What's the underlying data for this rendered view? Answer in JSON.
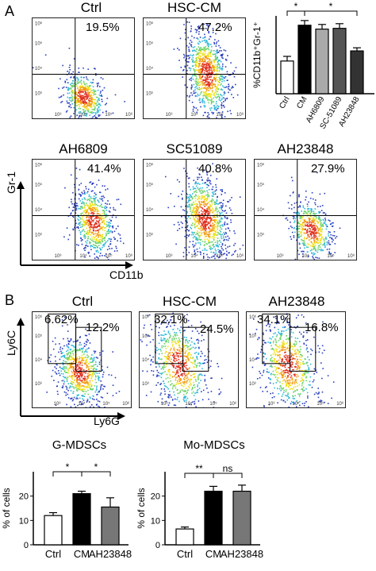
{
  "panels": {
    "A": {
      "letter": "A",
      "plots": [
        {
          "title": "Ctrl",
          "pct": "19.5%",
          "center": [
            0.5,
            0.78
          ],
          "spread": [
            0.1,
            0.12
          ],
          "density": "low"
        },
        {
          "title": "HSC-CM",
          "pct": "47.2%",
          "center": [
            0.62,
            0.55
          ],
          "spread": [
            0.1,
            0.22
          ],
          "density": "high"
        },
        {
          "title": "AH6809",
          "pct": "41.4%",
          "center": [
            0.6,
            0.62
          ],
          "spread": [
            0.1,
            0.18
          ],
          "density": "mid"
        },
        {
          "title": "SC51089",
          "pct": "40.8%",
          "center": [
            0.6,
            0.58
          ],
          "spread": [
            0.11,
            0.22
          ],
          "density": "high"
        },
        {
          "title": "AH23848",
          "pct": "27.9%",
          "center": [
            0.55,
            0.7
          ],
          "spread": [
            0.1,
            0.15
          ],
          "density": "low"
        }
      ],
      "x_axis_label": "CD11b",
      "y_axis_label": "Gr-1",
      "ticks": [
        "10³",
        "10⁴",
        "10⁵",
        "10⁶"
      ],
      "bar_chart": {
        "ylabel": "%CD11b⁺Gr-1⁺",
        "categories": [
          "Ctrl",
          "CM",
          "AH6809",
          "SC-51089",
          "AH23848"
        ],
        "significance": [
          "*",
          "*"
        ]
      }
    },
    "B": {
      "letter": "B",
      "plots": [
        {
          "title": "Ctrl",
          "pct_left": "6.62%",
          "pct_right": "12.2%",
          "center": [
            0.48,
            0.62
          ],
          "spread": [
            0.12,
            0.18
          ]
        },
        {
          "title": "HSC-CM",
          "pct_left": "32.1%",
          "pct_right": "24.5%",
          "center": [
            0.4,
            0.55
          ],
          "spread": [
            0.14,
            0.24
          ]
        },
        {
          "title": "AH23848",
          "pct_left": "34.1%",
          "pct_right": "16.8%",
          "center": [
            0.42,
            0.55
          ],
          "spread": [
            0.14,
            0.24
          ]
        }
      ],
      "x_axis_label": "Ly6G",
      "y_axis_label": "Ly6C",
      "ticks": [
        "10³",
        "10⁴",
        "10⁵",
        "10⁶"
      ]
    }
  },
  "chart_data": [
    {
      "type": "bar",
      "title": "",
      "ylabel": "%CD11b⁺Gr-1⁺",
      "categories": [
        "Ctrl",
        "CM",
        "AH6809",
        "SC-51089",
        "AH23848"
      ],
      "values": [
        21,
        44,
        41.5,
        42,
        27.5
      ],
      "errors": [
        3,
        3,
        3,
        3,
        2
      ],
      "colors": [
        "#ffffff",
        "#000000",
        "#aaaaaa",
        "#555555",
        "#333333"
      ],
      "ylim": [
        0,
        50
      ],
      "significance": [
        {
          "from": "Ctrl",
          "to": "CM",
          "label": "*"
        },
        {
          "from": "CM",
          "to": "AH23848",
          "label": "*"
        }
      ]
    },
    {
      "type": "bar",
      "title": "G-MDSCs",
      "ylabel": "% of cells",
      "categories": [
        "Ctrl",
        "CM",
        "AH23848"
      ],
      "values": [
        12,
        21,
        15.5
      ],
      "errors": [
        1.2,
        1.0,
        3.8
      ],
      "colors": [
        "#ffffff",
        "#000000",
        "#777777"
      ],
      "ylim": [
        0,
        30
      ],
      "yticks": [
        0,
        10,
        20
      ],
      "significance": [
        {
          "from": "Ctrl",
          "to": "CM",
          "label": "*"
        },
        {
          "from": "CM",
          "to": "AH23848",
          "label": "*"
        }
      ]
    },
    {
      "type": "bar",
      "title": "Mo-MDSCs",
      "ylabel": "% of cells",
      "categories": [
        "Ctrl",
        "CM",
        "AH23848"
      ],
      "values": [
        6.5,
        22,
        22
      ],
      "errors": [
        0.8,
        2.0,
        2.5
      ],
      "colors": [
        "#ffffff",
        "#000000",
        "#777777"
      ],
      "ylim": [
        0,
        30
      ],
      "yticks": [
        0,
        10,
        20
      ],
      "significance": [
        {
          "from": "Ctrl",
          "to": "CM",
          "label": "**"
        },
        {
          "from": "CM",
          "to": "AH23848",
          "label": "ns"
        }
      ]
    }
  ]
}
